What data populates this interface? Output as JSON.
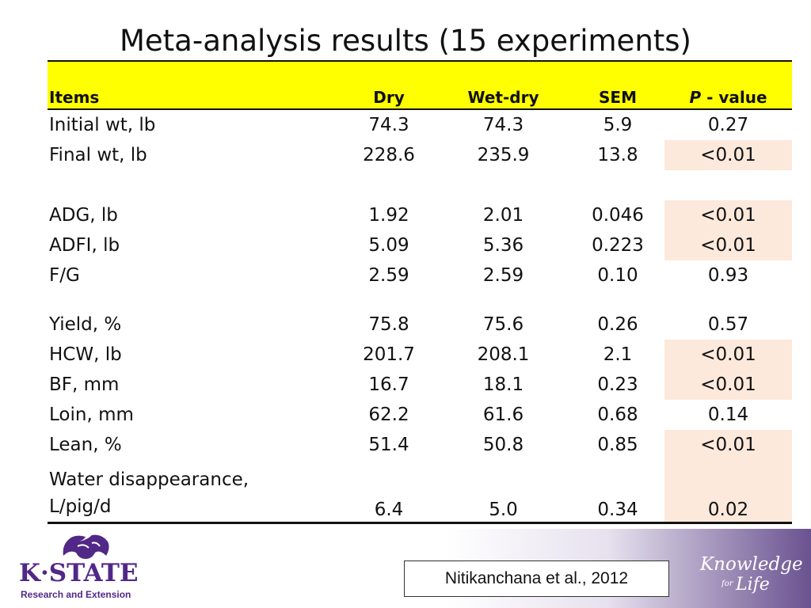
{
  "title": "Meta-analysis results (15 experiments)",
  "table": {
    "headers": {
      "items": "Items",
      "dry": "Dry",
      "wetdry": "Wet-dry",
      "sem": "SEM",
      "p_italic": "P",
      "p_rest": " - value"
    },
    "rows": [
      {
        "item": "Initial wt, lb",
        "dry": "74.3",
        "wetdry": "74.3",
        "sem": "5.9",
        "p": "0.27"
      },
      {
        "item": "Final wt, lb",
        "dry": "228.6",
        "wetdry": "235.9",
        "sem": "13.8",
        "p": "<0.01"
      },
      {
        "item": "ADG, lb",
        "dry": "1.92",
        "wetdry": "2.01",
        "sem": "0.046",
        "p": "<0.01"
      },
      {
        "item": "ADFI, lb",
        "dry": "5.09",
        "wetdry": "5.36",
        "sem": "0.223",
        "p": "<0.01"
      },
      {
        "item": "F/G",
        "dry": "2.59",
        "wetdry": "2.59",
        "sem": "0.10",
        "p": "0.93"
      },
      {
        "item": "Yield, %",
        "dry": "75.8",
        "wetdry": "75.6",
        "sem": "0.26",
        "p": "0.57"
      },
      {
        "item": "HCW, lb",
        "dry": "201.7",
        "wetdry": "208.1",
        "sem": "2.1",
        "p": "<0.01"
      },
      {
        "item": "BF, mm",
        "dry": "16.7",
        "wetdry": "18.1",
        "sem": "0.23",
        "p": "<0.01"
      },
      {
        "item": "Loin, mm",
        "dry": "62.2",
        "wetdry": "61.6",
        "sem": "0.68",
        "p": "0.14"
      },
      {
        "item": "Lean, %",
        "dry": "51.4",
        "wetdry": "50.8",
        "sem": "0.85",
        "p": "<0.01"
      },
      {
        "item_line1": "Water disappearance,",
        "item_line2": "L/pig/d",
        "dry": "6.4",
        "wetdry": "5.0",
        "sem": "0.34",
        "p": "0.02"
      }
    ],
    "highlight_color": "#fce9dc",
    "header_color": "#ffff00"
  },
  "logo": {
    "name": "K·STATE",
    "subtitle": "Research and Extension",
    "icon": "wildcat-icon",
    "color": "#512888"
  },
  "citation": "Nitikanchana et al., 2012",
  "tagline": {
    "line1": "Knowledge",
    "line2_small": "for",
    "line2_big": "Life"
  }
}
